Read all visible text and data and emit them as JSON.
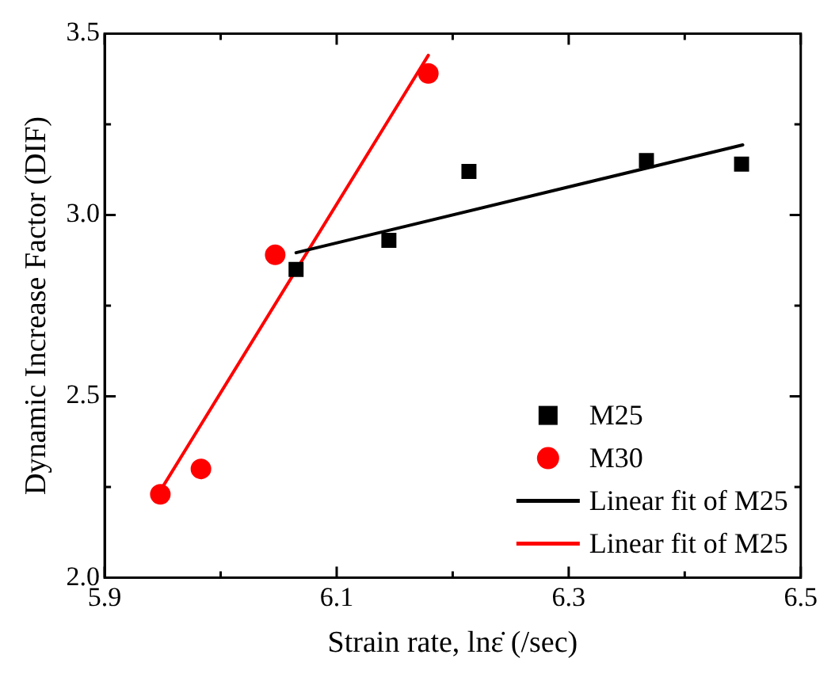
{
  "chart_data": {
    "type": "scatter",
    "xlabel": "Strain rate, lnε̇ (/sec)",
    "ylabel": "Dynamic Increase Factor (DIF)",
    "xlim": [
      5.9,
      6.5
    ],
    "xticks": [
      5.9,
      {
        "value": 6.0,
        "label": null
      },
      6.1,
      {
        "value": 6.2,
        "label": null
      },
      6.3,
      {
        "value": 6.4,
        "label": null
      },
      6.5
    ],
    "ylim": [
      2.0,
      3.5
    ],
    "yticks": [
      {
        "value": 2.0,
        "label": "2.0"
      },
      {
        "value": 2.25,
        "label": null
      },
      2.5,
      {
        "value": 2.75,
        "label": null
      },
      {
        "value": 3.0,
        "label": "3.0"
      },
      {
        "value": 3.25,
        "label": null
      },
      3.5
    ],
    "grid": false,
    "legend": "bottom right",
    "series": [
      {
        "name": "M25",
        "type": "scatter",
        "marker": "square",
        "color": "#000000",
        "x": [
          6.065,
          6.145,
          6.214,
          6.367,
          6.449
        ],
        "values": [
          2.85,
          2.93,
          3.12,
          3.15,
          3.14
        ]
      },
      {
        "name": "M30",
        "type": "scatter",
        "marker": "circle",
        "color": "#ff0000",
        "x": [
          5.948,
          5.983,
          6.047,
          6.179
        ],
        "values": [
          2.23,
          2.3,
          2.89,
          3.39
        ]
      },
      {
        "name": "Linear fit of M25",
        "type": "line",
        "marker": "none",
        "color": "#000000",
        "x": [
          6.065,
          6.45
        ],
        "values": [
          2.896,
          3.193
        ]
      },
      {
        "name": "Linear fit of M25",
        "type": "line",
        "marker": "none",
        "color": "#ff0000",
        "x": [
          5.948,
          6.179
        ],
        "values": [
          2.24,
          3.44
        ]
      }
    ]
  }
}
